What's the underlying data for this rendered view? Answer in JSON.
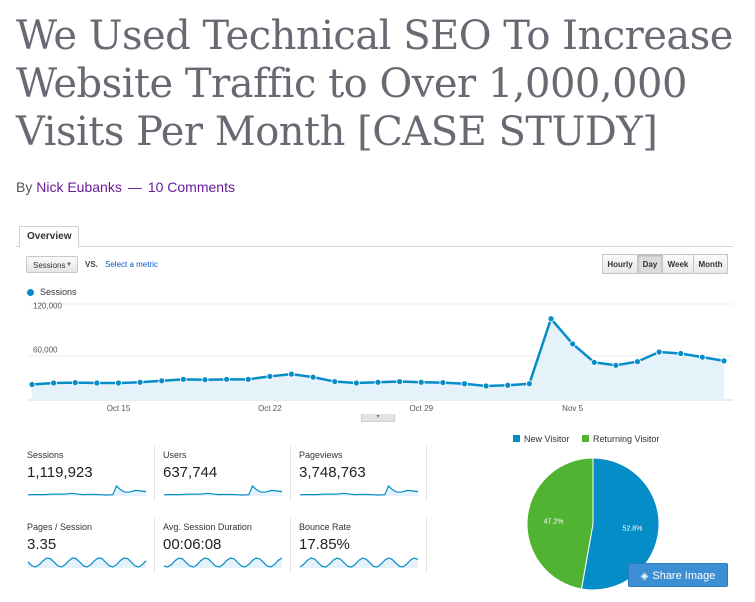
{
  "article": {
    "title": "We Used Technical SEO To Increase Website Traffic to Over 1,000,000 Visits Per Month [CASE STUDY]",
    "by": "By",
    "author": "Nick Eubanks",
    "separator": "—",
    "comments": "10 Comments"
  },
  "analytics": {
    "tab": "Overview",
    "metric_select": "Sessions",
    "vs_label": "VS.",
    "select_metric": "Select a metric",
    "granularity": [
      "Hourly",
      "Day",
      "Week",
      "Month"
    ],
    "active_granularity": "Day",
    "legend": "Sessions",
    "scroll_handle": "▾"
  },
  "chart_data": {
    "type": "line",
    "series": [
      {
        "name": "Sessions",
        "values": [
          21000,
          23000,
          23500,
          23000,
          23000,
          24000,
          26000,
          28000,
          27500,
          28000,
          28000,
          32000,
          35000,
          31000,
          25000,
          23000,
          24000,
          25000,
          24000,
          23500,
          22000,
          19000,
          20000,
          22000,
          110000,
          76000,
          51000,
          47000,
          52000,
          65000,
          63000,
          58000,
          53000
        ]
      }
    ],
    "x_ticks": [
      "Oct 15",
      "Oct 22",
      "Oct 29",
      "Nov 5"
    ],
    "y_ticks": [
      "120,000",
      "60,000"
    ],
    "ylim": [
      0,
      130000
    ],
    "color": "#058dc7"
  },
  "stats": [
    {
      "label": "Sessions",
      "value": "1,119,923"
    },
    {
      "label": "Users",
      "value": "637,744"
    },
    {
      "label": "Pageviews",
      "value": "3,748,763"
    },
    {
      "label": "Pages / Session",
      "value": "3.35"
    },
    {
      "label": "Avg. Session Duration",
      "value": "00:06:08"
    },
    {
      "label": "Bounce Rate",
      "value": "17.85%"
    }
  ],
  "visitor_pie": {
    "legend": [
      "New Visitor",
      "Returning Visitor"
    ],
    "slices": [
      {
        "name": "New Visitor",
        "value": 52.8,
        "label": "52.8%",
        "color": "#058dc7"
      },
      {
        "name": "Returning Visitor",
        "value": 47.2,
        "label": "47.2%",
        "color": "#50b432"
      }
    ]
  },
  "share": {
    "label": "Share Image",
    "icon": "layers-icon"
  }
}
